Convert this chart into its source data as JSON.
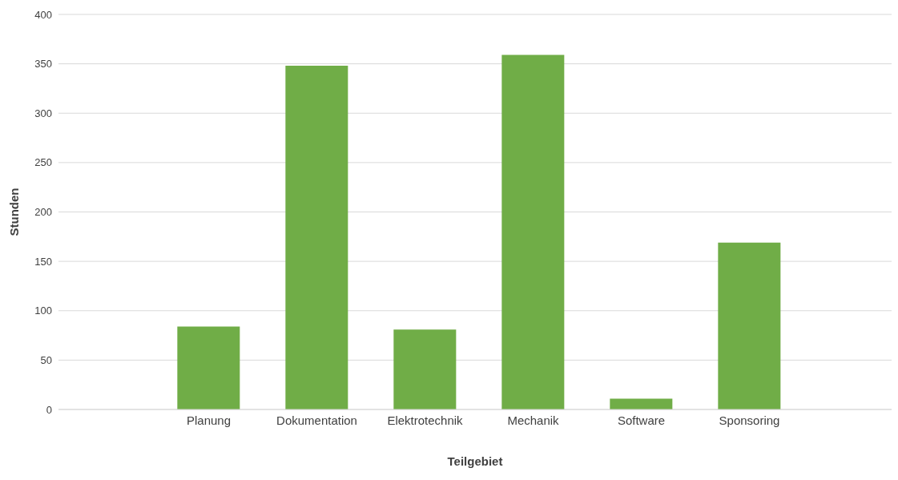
{
  "chart_data": {
    "type": "bar",
    "xlabel": "Teilgebiet",
    "ylabel": "Stunden",
    "categories": [
      "Planung",
      "Dokumentation",
      "Elektrotechnik",
      "Mechanik",
      "Software",
      "Sponsoring"
    ],
    "values": [
      84,
      348,
      81,
      359,
      11,
      169
    ],
    "color": "#70ad47",
    "ylim": [
      0,
      400
    ],
    "yticks": [
      0,
      50,
      100,
      150,
      200,
      250,
      300,
      350,
      400
    ],
    "grid": "y"
  }
}
